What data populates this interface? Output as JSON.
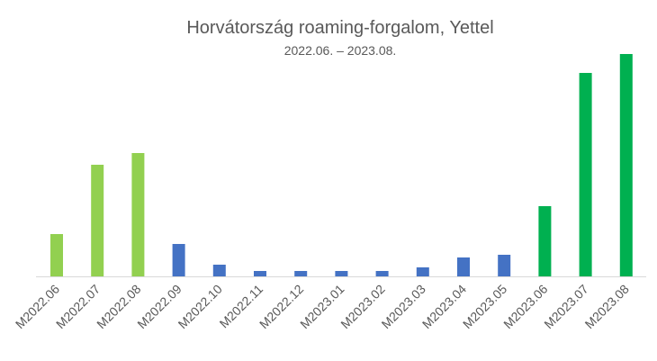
{
  "chart_data": {
    "type": "bar",
    "title": "Horvátország roaming-forgalom, Yettel",
    "subtitle": "2022.06. – 2023.08.",
    "categories": [
      "M2022.06",
      "M2022.07",
      "M2022.08",
      "M2022.09",
      "M2022.10",
      "M2022.11",
      "M2022.12",
      "M2023.01",
      "M2023.02",
      "M2023.03",
      "M2023.04",
      "M2023.05",
      "M2023.06",
      "M2023.07",
      "M2023.08"
    ],
    "values": [
      47,
      124,
      137,
      36,
      13,
      6,
      6,
      6,
      6,
      10,
      21,
      24,
      78,
      226,
      247
    ],
    "colors": [
      "#92d050",
      "#92d050",
      "#92d050",
      "#4472c4",
      "#4472c4",
      "#4472c4",
      "#4472c4",
      "#4472c4",
      "#4472c4",
      "#4472c4",
      "#4472c4",
      "#4472c4",
      "#00b050",
      "#00b050",
      "#00b050"
    ]
  }
}
